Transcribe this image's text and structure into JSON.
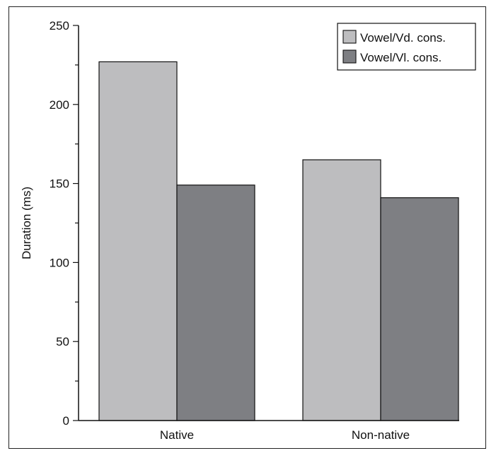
{
  "chart_data": {
    "type": "bar",
    "categories": [
      "Native",
      "Non-native"
    ],
    "series": [
      {
        "name": "Vowel/Vd. cons.",
        "values": [
          227,
          165
        ],
        "color": "#bdbdbf"
      },
      {
        "name": "Vowel/Vl. cons.",
        "values": [
          149,
          141
        ],
        "color": "#7e7f83"
      }
    ],
    "ylabel": "Duration (ms)",
    "xlabel": "",
    "ylim": [
      0,
      250
    ],
    "y_ticks": [
      0,
      50,
      100,
      150,
      200,
      250
    ],
    "y_minor_step": 25,
    "grid": false,
    "legend_position": "top-right"
  }
}
